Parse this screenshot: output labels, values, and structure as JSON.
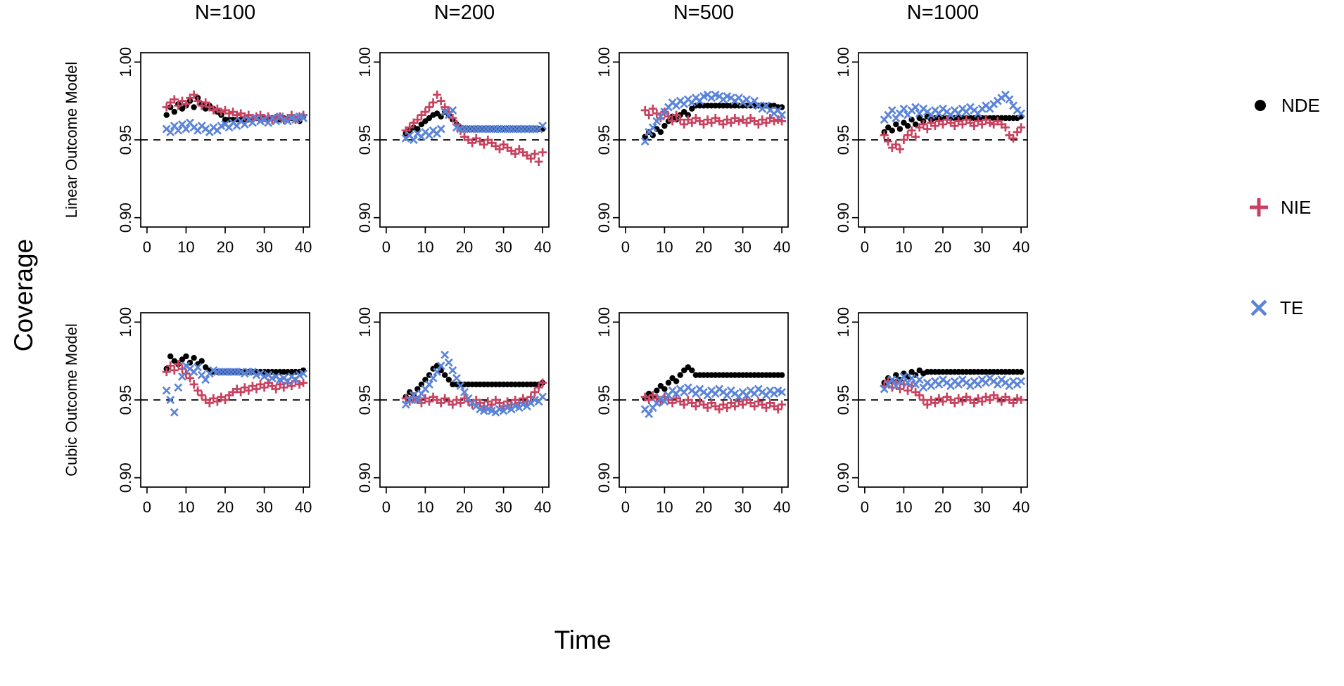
{
  "labels": {
    "y_global": "Coverage",
    "x_global": "Time"
  },
  "columns": [
    "N=100",
    "N=200",
    "N=500",
    "N=1000"
  ],
  "rows": [
    "Linear Outcome Model",
    "Cubic Outcome Model"
  ],
  "legend": [
    {
      "key": "NDE",
      "marker": "circle"
    },
    {
      "key": "NIE",
      "marker": "plus"
    },
    {
      "key": "TE",
      "marker": "x"
    }
  ],
  "colors": {
    "NDE": "#000000",
    "NIE": "#c8415f",
    "TE": "#5b84d9",
    "reference_line": "#000000"
  },
  "axes": {
    "x_ticks": [
      0,
      10,
      20,
      30,
      40
    ],
    "y_ticks": [
      0.9,
      0.95,
      1.0
    ],
    "y_tick_labels": [
      "0.90",
      "0.95",
      "1.00"
    ],
    "reference_y": 0.95
  },
  "chart_data": {
    "type": "scatter",
    "xlabel": "Time",
    "ylabel": "Coverage",
    "xlim": [
      0,
      40
    ],
    "ylim": [
      0.9,
      1.0
    ],
    "reference_line_y": 0.95,
    "legend_entries": [
      "NDE",
      "NIE",
      "TE"
    ],
    "x": [
      5,
      6,
      7,
      8,
      9,
      10,
      11,
      12,
      13,
      14,
      15,
      16,
      17,
      18,
      19,
      20,
      21,
      22,
      23,
      24,
      25,
      26,
      27,
      28,
      29,
      30,
      31,
      32,
      33,
      34,
      35,
      36,
      37,
      38,
      39,
      40
    ],
    "panels": [
      {
        "row": "Linear Outcome Model",
        "col": "N=100",
        "series": {
          "NDE": [
            0.966,
            0.971,
            0.968,
            0.973,
            0.97,
            0.972,
            0.975,
            0.971,
            0.977,
            0.973,
            0.97,
            0.972,
            0.97,
            0.968,
            0.966,
            0.963,
            0.963,
            0.963,
            0.963,
            0.963,
            0.963,
            0.963,
            0.963,
            0.964,
            0.963,
            0.964,
            0.963,
            0.964,
            0.963,
            0.963,
            0.964,
            0.963,
            0.964,
            0.963,
            0.962,
            0.965
          ],
          "NIE": [
            0.971,
            0.974,
            0.976,
            0.972,
            0.975,
            0.973,
            0.977,
            0.979,
            0.975,
            0.972,
            0.974,
            0.971,
            0.969,
            0.97,
            0.968,
            0.969,
            0.967,
            0.968,
            0.966,
            0.967,
            0.965,
            0.966,
            0.964,
            0.965,
            0.966,
            0.964,
            0.965,
            0.963,
            0.964,
            0.965,
            0.963,
            0.964,
            0.966,
            0.963,
            0.965,
            0.966
          ],
          "TE": [
            0.957,
            0.955,
            0.959,
            0.956,
            0.96,
            0.957,
            0.961,
            0.958,
            0.956,
            0.959,
            0.957,
            0.955,
            0.958,
            0.956,
            0.959,
            0.96,
            0.958,
            0.961,
            0.959,
            0.962,
            0.96,
            0.963,
            0.961,
            0.964,
            0.962,
            0.963,
            0.961,
            0.964,
            0.962,
            0.965,
            0.963,
            0.962,
            0.964,
            0.963,
            0.965,
            0.964
          ]
        }
      },
      {
        "row": "Linear Outcome Model",
        "col": "N=200",
        "series": {
          "NDE": [
            0.954,
            0.956,
            0.958,
            0.957,
            0.96,
            0.962,
            0.964,
            0.966,
            0.967,
            0.965,
            0.968,
            0.966,
            0.963,
            0.96,
            0.958,
            0.957,
            0.957,
            0.957,
            0.957,
            0.957,
            0.957,
            0.957,
            0.957,
            0.957,
            0.957,
            0.957,
            0.957,
            0.957,
            0.957,
            0.957,
            0.957,
            0.957,
            0.957,
            0.957,
            0.957,
            0.957
          ],
          "NIE": [
            0.956,
            0.958,
            0.961,
            0.963,
            0.966,
            0.968,
            0.971,
            0.974,
            0.979,
            0.975,
            0.971,
            0.968,
            0.964,
            0.96,
            0.956,
            0.952,
            0.95,
            0.948,
            0.951,
            0.949,
            0.947,
            0.95,
            0.948,
            0.946,
            0.944,
            0.947,
            0.945,
            0.943,
            0.941,
            0.944,
            0.942,
            0.94,
            0.938,
            0.941,
            0.936,
            0.942
          ],
          "TE": [
            0.951,
            0.953,
            0.95,
            0.954,
            0.952,
            0.955,
            0.953,
            0.956,
            0.954,
            0.957,
            0.968,
            0.966,
            0.969,
            0.958,
            0.957,
            0.957,
            0.957,
            0.957,
            0.957,
            0.957,
            0.957,
            0.957,
            0.957,
            0.957,
            0.957,
            0.957,
            0.957,
            0.957,
            0.957,
            0.957,
            0.957,
            0.957,
            0.957,
            0.957,
            0.957,
            0.959
          ]
        }
      },
      {
        "row": "Linear Outcome Model",
        "col": "N=500",
        "series": {
          "NDE": [
            0.952,
            0.955,
            0.953,
            0.957,
            0.955,
            0.959,
            0.962,
            0.965,
            0.963,
            0.966,
            0.968,
            0.966,
            0.97,
            0.972,
            0.972,
            0.972,
            0.972,
            0.972,
            0.972,
            0.972,
            0.972,
            0.972,
            0.972,
            0.972,
            0.972,
            0.972,
            0.972,
            0.972,
            0.972,
            0.972,
            0.972,
            0.972,
            0.972,
            0.972,
            0.971,
            0.971
          ],
          "NIE": [
            0.969,
            0.966,
            0.97,
            0.967,
            0.964,
            0.968,
            0.965,
            0.962,
            0.966,
            0.963,
            0.96,
            0.963,
            0.961,
            0.964,
            0.962,
            0.96,
            0.963,
            0.961,
            0.964,
            0.962,
            0.96,
            0.963,
            0.961,
            0.964,
            0.962,
            0.963,
            0.961,
            0.964,
            0.962,
            0.96,
            0.963,
            0.961,
            0.964,
            0.962,
            0.963,
            0.962
          ],
          "TE": [
            0.949,
            0.955,
            0.958,
            0.962,
            0.965,
            0.968,
            0.971,
            0.974,
            0.972,
            0.975,
            0.973,
            0.976,
            0.974,
            0.977,
            0.975,
            0.978,
            0.979,
            0.977,
            0.979,
            0.978,
            0.976,
            0.978,
            0.977,
            0.975,
            0.977,
            0.974,
            0.976,
            0.973,
            0.975,
            0.972,
            0.97,
            0.972,
            0.969,
            0.967,
            0.969,
            0.966
          ]
        }
      },
      {
        "row": "Linear Outcome Model",
        "col": "N=1000",
        "series": {
          "NDE": [
            0.955,
            0.958,
            0.956,
            0.96,
            0.957,
            0.961,
            0.959,
            0.963,
            0.96,
            0.964,
            0.962,
            0.965,
            0.963,
            0.964,
            0.964,
            0.964,
            0.964,
            0.964,
            0.964,
            0.964,
            0.964,
            0.964,
            0.964,
            0.964,
            0.964,
            0.964,
            0.964,
            0.964,
            0.964,
            0.964,
            0.964,
            0.964,
            0.964,
            0.964,
            0.964,
            0.965
          ],
          "NIE": [
            0.953,
            0.949,
            0.945,
            0.947,
            0.944,
            0.95,
            0.953,
            0.956,
            0.952,
            0.958,
            0.96,
            0.957,
            0.961,
            0.959,
            0.962,
            0.96,
            0.963,
            0.961,
            0.959,
            0.962,
            0.96,
            0.963,
            0.961,
            0.959,
            0.962,
            0.96,
            0.963,
            0.961,
            0.96,
            0.962,
            0.96,
            0.958,
            0.953,
            0.951,
            0.955,
            0.958
          ],
          "TE": [
            0.963,
            0.966,
            0.969,
            0.964,
            0.967,
            0.97,
            0.966,
            0.969,
            0.971,
            0.967,
            0.97,
            0.968,
            0.966,
            0.969,
            0.967,
            0.97,
            0.968,
            0.966,
            0.969,
            0.967,
            0.97,
            0.968,
            0.971,
            0.969,
            0.967,
            0.97,
            0.972,
            0.97,
            0.973,
            0.975,
            0.977,
            0.979,
            0.976,
            0.972,
            0.969,
            0.967
          ]
        }
      },
      {
        "row": "Cubic Outcome Model",
        "col": "N=100",
        "series": {
          "NDE": [
            0.97,
            0.978,
            0.975,
            0.973,
            0.976,
            0.978,
            0.974,
            0.977,
            0.973,
            0.975,
            0.971,
            0.969,
            0.968,
            0.968,
            0.968,
            0.968,
            0.968,
            0.968,
            0.968,
            0.968,
            0.968,
            0.968,
            0.968,
            0.968,
            0.968,
            0.968,
            0.968,
            0.968,
            0.968,
            0.968,
            0.968,
            0.968,
            0.968,
            0.968,
            0.968,
            0.969
          ],
          "NIE": [
            0.968,
            0.972,
            0.969,
            0.973,
            0.97,
            0.967,
            0.964,
            0.96,
            0.956,
            0.953,
            0.95,
            0.948,
            0.951,
            0.949,
            0.952,
            0.95,
            0.953,
            0.955,
            0.957,
            0.955,
            0.958,
            0.956,
            0.959,
            0.957,
            0.96,
            0.958,
            0.961,
            0.959,
            0.957,
            0.96,
            0.958,
            0.961,
            0.959,
            0.962,
            0.96,
            0.961
          ],
          "TE": [
            0.956,
            0.95,
            0.942,
            0.958,
            0.965,
            0.972,
            0.97,
            0.968,
            0.971,
            0.966,
            0.963,
            0.967,
            0.969,
            0.968,
            0.968,
            0.968,
            0.968,
            0.968,
            0.968,
            0.968,
            0.967,
            0.968,
            0.968,
            0.966,
            0.967,
            0.965,
            0.966,
            0.964,
            0.965,
            0.963,
            0.964,
            0.962,
            0.965,
            0.963,
            0.966,
            0.967
          ]
        }
      },
      {
        "row": "Cubic Outcome Model",
        "col": "N=200",
        "series": {
          "NDE": [
            0.952,
            0.955,
            0.953,
            0.957,
            0.96,
            0.963,
            0.966,
            0.97,
            0.972,
            0.969,
            0.966,
            0.963,
            0.96,
            0.96,
            0.96,
            0.96,
            0.96,
            0.96,
            0.96,
            0.96,
            0.96,
            0.96,
            0.96,
            0.96,
            0.96,
            0.96,
            0.96,
            0.96,
            0.96,
            0.96,
            0.96,
            0.96,
            0.96,
            0.96,
            0.96,
            0.961
          ],
          "NIE": [
            0.951,
            0.949,
            0.952,
            0.95,
            0.948,
            0.951,
            0.949,
            0.952,
            0.95,
            0.948,
            0.951,
            0.949,
            0.947,
            0.95,
            0.948,
            0.951,
            0.949,
            0.947,
            0.95,
            0.948,
            0.946,
            0.949,
            0.947,
            0.95,
            0.948,
            0.946,
            0.949,
            0.947,
            0.95,
            0.948,
            0.951,
            0.949,
            0.952,
            0.955,
            0.958,
            0.961
          ],
          "TE": [
            0.947,
            0.95,
            0.953,
            0.95,
            0.954,
            0.957,
            0.96,
            0.964,
            0.968,
            0.972,
            0.979,
            0.974,
            0.969,
            0.964,
            0.959,
            0.955,
            0.951,
            0.948,
            0.946,
            0.944,
            0.943,
            0.944,
            0.943,
            0.942,
            0.944,
            0.943,
            0.945,
            0.944,
            0.946,
            0.945,
            0.947,
            0.946,
            0.948,
            0.95,
            0.949,
            0.952
          ]
        }
      },
      {
        "row": "Cubic Outcome Model",
        "col": "N=500",
        "series": {
          "NDE": [
            0.951,
            0.954,
            0.952,
            0.956,
            0.959,
            0.957,
            0.961,
            0.964,
            0.962,
            0.966,
            0.969,
            0.971,
            0.969,
            0.966,
            0.966,
            0.966,
            0.966,
            0.966,
            0.966,
            0.966,
            0.966,
            0.966,
            0.966,
            0.966,
            0.966,
            0.966,
            0.966,
            0.966,
            0.966,
            0.966,
            0.966,
            0.966,
            0.966,
            0.966,
            0.966,
            0.966
          ],
          "NIE": [
            0.952,
            0.95,
            0.953,
            0.951,
            0.949,
            0.952,
            0.95,
            0.948,
            0.951,
            0.949,
            0.947,
            0.95,
            0.948,
            0.946,
            0.949,
            0.947,
            0.945,
            0.948,
            0.946,
            0.944,
            0.947,
            0.945,
            0.948,
            0.946,
            0.949,
            0.947,
            0.95,
            0.948,
            0.946,
            0.949,
            0.947,
            0.945,
            0.948,
            0.946,
            0.944,
            0.947
          ],
          "TE": [
            0.944,
            0.941,
            0.945,
            0.948,
            0.951,
            0.949,
            0.953,
            0.956,
            0.954,
            0.957,
            0.955,
            0.958,
            0.956,
            0.954,
            0.957,
            0.955,
            0.953,
            0.956,
            0.954,
            0.957,
            0.955,
            0.953,
            0.956,
            0.954,
            0.952,
            0.955,
            0.953,
            0.956,
            0.954,
            0.957,
            0.955,
            0.953,
            0.956,
            0.954,
            0.956,
            0.955
          ]
        }
      },
      {
        "row": "Cubic Outcome Model",
        "col": "N=1000",
        "series": {
          "NDE": [
            0.961,
            0.964,
            0.962,
            0.966,
            0.963,
            0.967,
            0.965,
            0.968,
            0.966,
            0.969,
            0.967,
            0.968,
            0.968,
            0.968,
            0.968,
            0.968,
            0.968,
            0.968,
            0.968,
            0.968,
            0.968,
            0.968,
            0.968,
            0.968,
            0.968,
            0.968,
            0.968,
            0.968,
            0.968,
            0.968,
            0.968,
            0.968,
            0.968,
            0.968,
            0.968,
            0.968
          ],
          "NIE": [
            0.959,
            0.962,
            0.958,
            0.961,
            0.957,
            0.96,
            0.956,
            0.959,
            0.955,
            0.953,
            0.95,
            0.947,
            0.95,
            0.948,
            0.951,
            0.949,
            0.952,
            0.95,
            0.948,
            0.951,
            0.949,
            0.952,
            0.95,
            0.948,
            0.951,
            0.949,
            0.952,
            0.95,
            0.953,
            0.951,
            0.949,
            0.952,
            0.95,
            0.948,
            0.951,
            0.95
          ],
          "TE": [
            0.957,
            0.96,
            0.963,
            0.959,
            0.962,
            0.965,
            0.961,
            0.964,
            0.96,
            0.963,
            0.958,
            0.961,
            0.959,
            0.962,
            0.96,
            0.963,
            0.961,
            0.959,
            0.962,
            0.96,
            0.963,
            0.961,
            0.959,
            0.962,
            0.96,
            0.963,
            0.961,
            0.964,
            0.962,
            0.96,
            0.963,
            0.961,
            0.959,
            0.962,
            0.96,
            0.962
          ]
        }
      }
    ]
  }
}
